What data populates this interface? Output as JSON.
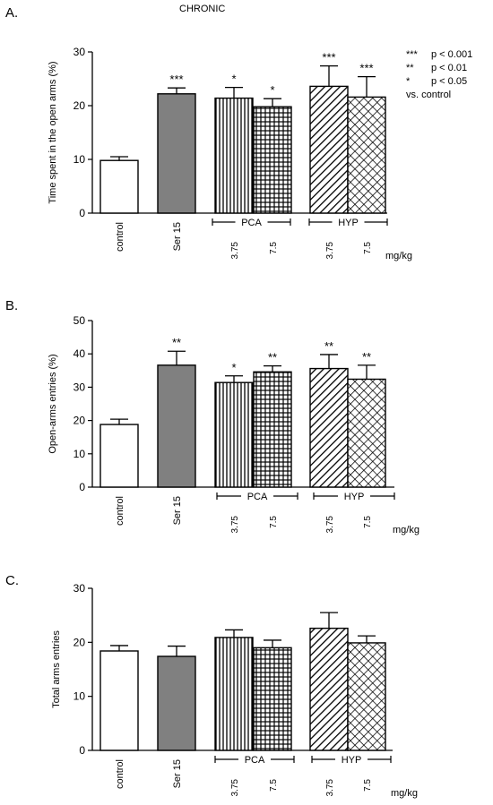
{
  "title": "CHRONIC",
  "legend": {
    "items": [
      {
        "sym": "***",
        "text": "p < 0.001"
      },
      {
        "sym": "**",
        "text": "p < 0.01"
      },
      {
        "sym": "*",
        "text": "p < 0.05"
      }
    ],
    "footer": "vs. control"
  },
  "colors": {
    "ser15_fill": "#808080",
    "stroke": "#000000",
    "background": "#ffffff"
  },
  "chart_data": [
    {
      "panel": "A.",
      "type": "bar",
      "ylabel": "Time spent in the open arms (%)",
      "ylim": [
        0,
        30
      ],
      "yticks": [
        0,
        10,
        20,
        30
      ],
      "categories": [
        "control",
        "Ser 15",
        "3.75",
        "7.5",
        "3.75",
        "7.5"
      ],
      "patterns": [
        "white",
        "gray",
        "vertical",
        "grid",
        "diagonal",
        "crosshatch"
      ],
      "values": [
        9.8,
        22.2,
        21.4,
        19.8,
        23.6,
        21.6
      ],
      "errors": [
        0.7,
        1.1,
        2.0,
        1.5,
        3.8,
        3.8
      ],
      "significance": [
        "",
        "***",
        "*",
        "*",
        "***",
        "***"
      ],
      "groups": [
        {
          "label": "PCA",
          "from": 2,
          "to": 3
        },
        {
          "label": "HYP",
          "from": 4,
          "to": 5
        }
      ],
      "unit_label": "mg/kg"
    },
    {
      "panel": "B.",
      "type": "bar",
      "ylabel": "Open-arms entries (%)",
      "ylim": [
        0,
        50
      ],
      "yticks": [
        0,
        10,
        20,
        30,
        40,
        50
      ],
      "categories": [
        "control",
        "Ser 15",
        "3.75",
        "7.5",
        "3.75",
        "7.5"
      ],
      "patterns": [
        "white",
        "gray",
        "vertical",
        "grid",
        "diagonal",
        "crosshatch"
      ],
      "values": [
        18.8,
        36.6,
        31.4,
        34.6,
        35.6,
        32.4
      ],
      "errors": [
        1.6,
        4.2,
        2.0,
        1.8,
        4.2,
        4.2
      ],
      "significance": [
        "",
        "**",
        "*",
        "**",
        "**",
        "**"
      ],
      "groups": [
        {
          "label": "PCA",
          "from": 2,
          "to": 3
        },
        {
          "label": "HYP",
          "from": 4,
          "to": 5
        }
      ],
      "unit_label": "mg/kg"
    },
    {
      "panel": "C.",
      "type": "bar",
      "ylabel": "Total arms entries",
      "ylim": [
        0,
        30
      ],
      "yticks": [
        0,
        10,
        20,
        30
      ],
      "categories": [
        "control",
        "Ser 15",
        "3.75",
        "7.5",
        "3.75",
        "7.5"
      ],
      "patterns": [
        "white",
        "gray",
        "vertical",
        "grid",
        "diagonal",
        "crosshatch"
      ],
      "values": [
        18.4,
        17.4,
        20.9,
        19.0,
        22.6,
        19.9
      ],
      "errors": [
        1.0,
        1.9,
        1.4,
        1.4,
        2.9,
        1.3
      ],
      "significance": [
        "",
        "",
        "",
        "",
        "",
        ""
      ],
      "groups": [
        {
          "label": "PCA",
          "from": 2,
          "to": 3
        },
        {
          "label": "HYP",
          "from": 4,
          "to": 5
        }
      ],
      "unit_label": "mg/kg"
    }
  ]
}
